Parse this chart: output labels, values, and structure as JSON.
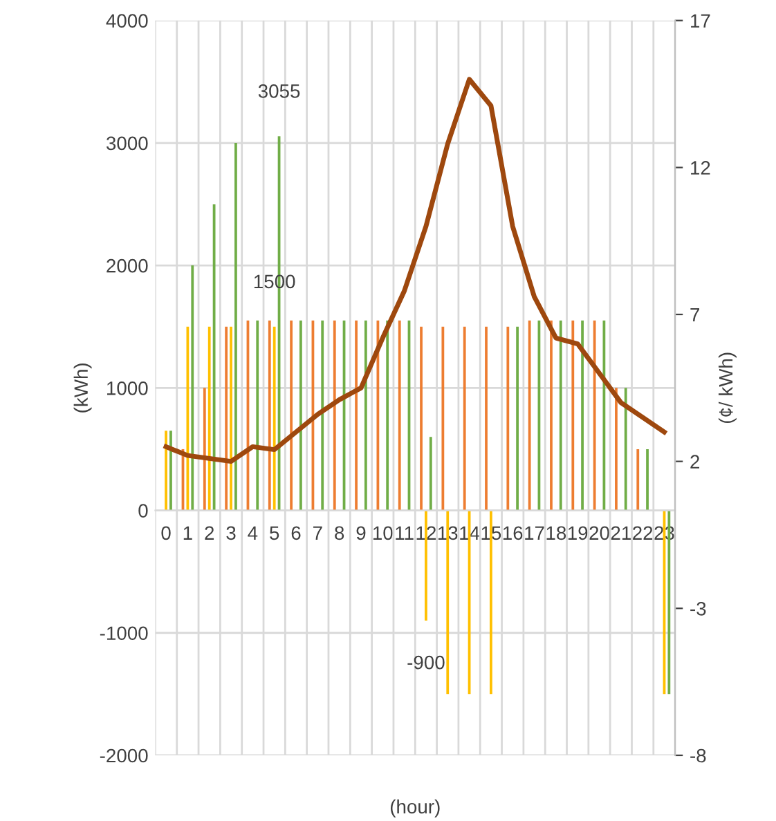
{
  "chart_data": {
    "type": "bar",
    "xlabel": "(hour)",
    "ylabel": "(kWh)",
    "y2label": "(¢/ kWh)",
    "categories": [
      "0",
      "1",
      "2",
      "3",
      "4",
      "5",
      "6",
      "7",
      "8",
      "9",
      "10",
      "11",
      "12",
      "13",
      "14",
      "15",
      "16",
      "17",
      "18",
      "19",
      "20",
      "21",
      "22",
      "23"
    ],
    "series": [
      {
        "color": "#ed7d31",
        "values": [
          null,
          500,
          1000,
          1500,
          1550,
          1550,
          1550,
          1550,
          1550,
          1550,
          1550,
          1550,
          1500,
          1500,
          1500,
          1500,
          1500,
          1550,
          1550,
          1550,
          1550,
          1000,
          500,
          null
        ]
      },
      {
        "color": "#ffc000",
        "values": [
          650,
          1500,
          1500,
          1500,
          null,
          1500,
          null,
          null,
          null,
          null,
          null,
          null,
          -900,
          -1500,
          -1500,
          -1500,
          null,
          null,
          null,
          null,
          null,
          null,
          null,
          -1500
        ],
        "value_labels": [
          null,
          null,
          null,
          null,
          null,
          "1500",
          null,
          null,
          null,
          null,
          null,
          null,
          "-900",
          null,
          null,
          null,
          null,
          null,
          null,
          null,
          null,
          null,
          null,
          null
        ]
      },
      {
        "color": "#70ad47",
        "values": [
          650,
          2000,
          2500,
          3000,
          1550,
          3055,
          1550,
          1550,
          1550,
          1550,
          1550,
          1550,
          600,
          null,
          null,
          null,
          1500,
          1550,
          1550,
          1550,
          1550,
          1000,
          500,
          -1500
        ],
        "value_labels": [
          null,
          null,
          null,
          null,
          null,
          "3055",
          null,
          null,
          null,
          null,
          null,
          null,
          null,
          null,
          null,
          null,
          null,
          null,
          null,
          null,
          null,
          null,
          null,
          null
        ]
      },
      {
        "type": "line",
        "axis": "y2",
        "color": "#9e480e",
        "values": [
          2.5,
          2.2,
          2.1,
          2.0,
          2.5,
          2.4,
          3.0,
          3.6,
          4.1,
          4.5,
          6.2,
          7.8,
          10.0,
          12.8,
          15.0,
          14.1,
          10.0,
          7.6,
          6.2,
          6.0,
          5.0,
          4.0,
          3.5,
          3.0
        ]
      }
    ],
    "ylim": [
      -2000,
      4000
    ],
    "yticks": [
      -2000,
      -1000,
      0,
      1000,
      2000,
      3000,
      4000
    ],
    "y2lim": [
      -8,
      17
    ],
    "y2ticks": [
      -8,
      -3,
      2,
      7,
      12,
      17
    ],
    "grid": true
  }
}
